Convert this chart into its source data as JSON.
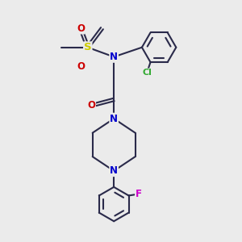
{
  "bg_color": "#ebebeb",
  "bond_color": "#2a2a4a",
  "bond_width": 1.5,
  "atom_colors": {
    "N": "#0000cc",
    "O": "#cc0000",
    "S": "#cccc00",
    "Cl": "#33aa33",
    "F": "#cc00cc",
    "C": "#2a2a4a"
  },
  "font_size": 8.5,
  "fig_size": [
    3.0,
    3.0
  ],
  "dpi": 100,
  "xlim": [
    0,
    10
  ],
  "ylim": [
    0,
    10
  ]
}
